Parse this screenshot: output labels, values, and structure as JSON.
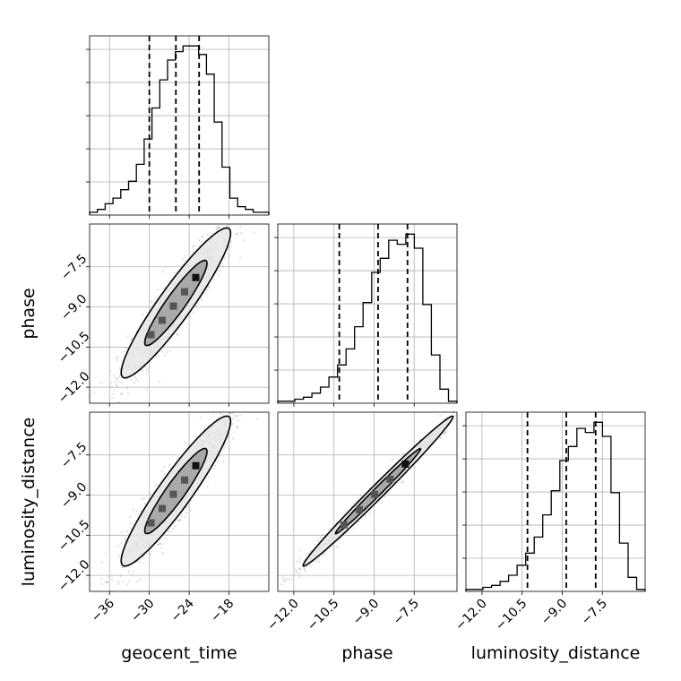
{
  "chart_data": {
    "type": "corner",
    "parameters": [
      "geocent_time",
      "phase",
      "luminosity_distance"
    ],
    "axis_labels": {
      "geocent_time": "geocent_time",
      "phase": "phase",
      "luminosity_distance": "luminosity_distance"
    },
    "ranges": {
      "geocent_time": [
        -39,
        -12
      ],
      "phase": [
        -12.6,
        -5.9
      ],
      "luminosity_distance": [
        -12.6,
        -5.9
      ]
    },
    "ticks": {
      "geocent_time": [
        -36,
        -30,
        -24,
        -18
      ],
      "phase": [
        -12.0,
        -10.5,
        -9.0,
        -7.5
      ],
      "luminosity_distance": [
        -12.0,
        -10.5,
        -9.0,
        -7.5
      ]
    },
    "tick_labels": {
      "geocent_time": [
        "−36",
        "−30",
        "−24",
        "−18"
      ],
      "phase": [
        "−12.0",
        "−10.5",
        "−9.0",
        "−7.5"
      ],
      "luminosity_distance": [
        "−12.0",
        "−10.5",
        "−9.0",
        "−7.5"
      ]
    },
    "histograms": {
      "geocent_time": {
        "counts": [
          1,
          2,
          4,
          6,
          9,
          12,
          18,
          27,
          38,
          48,
          55,
          58,
          60,
          60,
          57,
          50,
          33,
          17,
          6,
          3,
          2,
          1,
          1
        ]
      },
      "phase": {
        "counts": [
          1,
          1,
          2,
          3,
          5,
          8,
          13,
          19,
          27,
          38,
          50,
          65,
          72,
          81,
          79,
          84,
          77,
          49,
          24,
          7,
          1
        ]
      },
      "luminosity_distance": {
        "counts": [
          1,
          1,
          2,
          3,
          5,
          8,
          13,
          19,
          27,
          38,
          50,
          65,
          72,
          81,
          79,
          84,
          77,
          49,
          24,
          7,
          1
        ]
      }
    },
    "quantiles": {
      "geocent_time": [
        -30.0,
        -26.0,
        -22.5
      ],
      "phase": [
        -10.3,
        -8.85,
        -7.75
      ],
      "luminosity_distance": [
        -10.3,
        -8.85,
        -7.75
      ]
    },
    "grid": true
  }
}
